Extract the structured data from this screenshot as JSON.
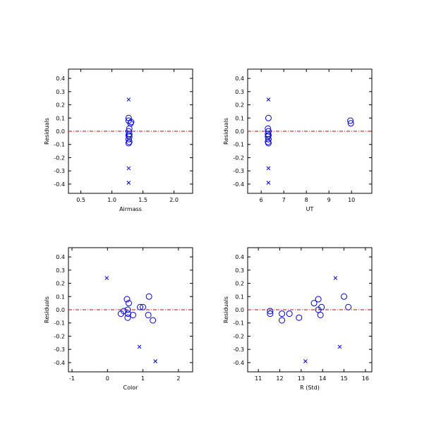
{
  "colors": {
    "marker": "#0000cc",
    "zero_line": "#cc0000",
    "axes": "#000000"
  },
  "chart_data": [
    {
      "type": "scatter",
      "xlabel": "Airmass",
      "ylabel": "Residuals",
      "xlim": [
        0.3,
        2.3
      ],
      "ylim": [
        -0.47,
        0.47
      ],
      "xticks": [
        0.5,
        1.0,
        1.5,
        2.0
      ],
      "xtick_labels": [
        "0.5",
        "1.0",
        "1.5",
        "2.0"
      ],
      "yticks": [
        -0.4,
        -0.3,
        -0.2,
        -0.1,
        0.0,
        0.1,
        0.2,
        0.3,
        0.4
      ],
      "ytick_labels": [
        "-0.4",
        "-0.3",
        "-0.2",
        "-0.1",
        "0.0",
        "0.1",
        "0.2",
        "0.3",
        "0.4"
      ],
      "grid": false,
      "reference_line_y": 0.0,
      "series": [
        {
          "marker": "circle",
          "points": [
            [
              1.27,
              0.1
            ],
            [
              1.28,
              0.02
            ],
            [
              1.27,
              0.0
            ],
            [
              1.28,
              -0.02
            ],
            [
              1.27,
              -0.03
            ],
            [
              1.28,
              -0.04
            ],
            [
              1.27,
              -0.06
            ],
            [
              1.28,
              -0.08
            ],
            [
              1.3,
              0.06
            ],
            [
              1.27,
              -0.09
            ],
            [
              1.31,
              0.07
            ],
            [
              1.27,
              0.08
            ]
          ]
        },
        {
          "marker": "x",
          "points": [
            [
              1.27,
              0.24
            ],
            [
              1.27,
              -0.28
            ],
            [
              1.27,
              -0.39
            ]
          ]
        }
      ]
    },
    {
      "type": "scatter",
      "xlabel": "UT",
      "ylabel": "Residuals",
      "xlim": [
        5.4,
        10.9
      ],
      "ylim": [
        -0.47,
        0.47
      ],
      "xticks": [
        6,
        7,
        8,
        9,
        10
      ],
      "xtick_labels": [
        "6",
        "7",
        "8",
        "9",
        "10"
      ],
      "yticks": [
        -0.4,
        -0.3,
        -0.2,
        -0.1,
        0.0,
        0.1,
        0.2,
        0.3,
        0.4
      ],
      "ytick_labels": [
        "-0.4",
        "-0.3",
        "-0.2",
        "-0.1",
        "0.0",
        "0.1",
        "0.2",
        "0.3",
        "0.4"
      ],
      "grid": false,
      "reference_line_y": 0.0,
      "series": [
        {
          "marker": "circle",
          "points": [
            [
              6.32,
              0.1
            ],
            [
              6.3,
              0.02
            ],
            [
              6.32,
              0.0
            ],
            [
              6.3,
              -0.02
            ],
            [
              6.32,
              -0.03
            ],
            [
              6.3,
              -0.04
            ],
            [
              6.32,
              -0.06
            ],
            [
              6.3,
              -0.08
            ],
            [
              6.32,
              -0.09
            ],
            [
              9.95,
              0.08
            ],
            [
              9.97,
              0.06
            ]
          ]
        },
        {
          "marker": "x",
          "points": [
            [
              6.32,
              0.24
            ],
            [
              6.32,
              -0.28
            ],
            [
              6.32,
              -0.39
            ]
          ]
        }
      ]
    },
    {
      "type": "scatter",
      "xlabel": "Color",
      "ylabel": "Residuals",
      "xlim": [
        -1.1,
        2.4
      ],
      "ylim": [
        -0.47,
        0.47
      ],
      "xticks": [
        -1,
        0,
        1,
        2
      ],
      "xtick_labels": [
        "-1",
        "0",
        "1",
        "2"
      ],
      "yticks": [
        -0.4,
        -0.3,
        -0.2,
        -0.1,
        0.0,
        0.1,
        0.2,
        0.3,
        0.4
      ],
      "ytick_labels": [
        "-0.4",
        "-0.3",
        "-0.2",
        "-0.1",
        "0.0",
        "0.1",
        "0.2",
        "0.3",
        "0.4"
      ],
      "grid": false,
      "reference_line_y": 0.0,
      "series": [
        {
          "marker": "circle",
          "points": [
            [
              0.38,
              -0.03
            ],
            [
              0.46,
              -0.01
            ],
            [
              0.55,
              0.08
            ],
            [
              0.57,
              0.0
            ],
            [
              0.6,
              0.05
            ],
            [
              0.58,
              -0.03
            ],
            [
              0.57,
              -0.06
            ],
            [
              0.72,
              -0.04
            ],
            [
              0.92,
              0.02
            ],
            [
              1.0,
              0.02
            ],
            [
              1.15,
              -0.04
            ],
            [
              1.17,
              0.1
            ],
            [
              1.28,
              -0.08
            ]
          ]
        },
        {
          "marker": "x",
          "points": [
            [
              -0.02,
              0.24
            ],
            [
              0.9,
              -0.28
            ],
            [
              1.35,
              -0.39
            ]
          ]
        }
      ]
    },
    {
      "type": "scatter",
      "xlabel": "R (Std)",
      "ylabel": "Residuals",
      "xlim": [
        10.5,
        16.3
      ],
      "ylim": [
        -0.47,
        0.47
      ],
      "xticks": [
        11,
        12,
        13,
        14,
        15,
        16
      ],
      "xtick_labels": [
        "11",
        "12",
        "13",
        "14",
        "15",
        "16"
      ],
      "yticks": [
        -0.4,
        -0.3,
        -0.2,
        -0.1,
        0.0,
        0.1,
        0.2,
        0.3,
        0.4
      ],
      "ytick_labels": [
        "-0.4",
        "-0.3",
        "-0.2",
        "-0.1",
        "0.0",
        "0.1",
        "0.2",
        "0.3",
        "0.4"
      ],
      "grid": false,
      "reference_line_y": 0.0,
      "series": [
        {
          "marker": "circle",
          "points": [
            [
              11.55,
              -0.01
            ],
            [
              11.55,
              -0.03
            ],
            [
              12.1,
              -0.03
            ],
            [
              12.1,
              -0.08
            ],
            [
              12.45,
              -0.03
            ],
            [
              12.9,
              -0.06
            ],
            [
              13.6,
              0.05
            ],
            [
              13.8,
              0.08
            ],
            [
              13.8,
              0.0
            ],
            [
              13.95,
              0.02
            ],
            [
              13.9,
              -0.04
            ],
            [
              15.0,
              0.1
            ],
            [
              15.2,
              0.02
            ]
          ]
        },
        {
          "marker": "x",
          "points": [
            [
              14.6,
              0.24
            ],
            [
              14.8,
              -0.28
            ],
            [
              13.2,
              -0.39
            ]
          ]
        }
      ]
    }
  ]
}
